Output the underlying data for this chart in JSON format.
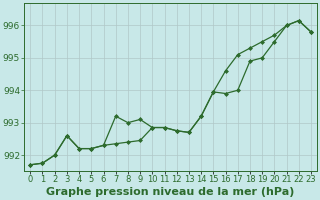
{
  "title": "Graphe pression niveau de la mer (hPa)",
  "bg_color": "#c8e8e8",
  "plot_bg_color": "#c8e8e8",
  "grid_color": "#b0c8c8",
  "line_color": "#2d6b2d",
  "x_labels": [
    "0",
    "1",
    "2",
    "3",
    "4",
    "5",
    "6",
    "7",
    "8",
    "9",
    "10",
    "11",
    "12",
    "13",
    "14",
    "15",
    "16",
    "17",
    "18",
    "19",
    "20",
    "21",
    "22",
    "23"
  ],
  "ylim": [
    991.5,
    996.7
  ],
  "yticks": [
    992,
    993,
    994,
    995,
    996
  ],
  "series1": [
    991.7,
    991.75,
    992.0,
    992.6,
    992.2,
    992.2,
    992.3,
    993.2,
    993.0,
    993.1,
    992.85,
    992.85,
    992.75,
    992.7,
    993.2,
    993.95,
    993.9,
    994.0,
    994.9,
    995.0,
    995.5,
    996.0,
    996.15,
    995.8
  ],
  "series2": [
    991.7,
    991.75,
    992.0,
    992.6,
    992.2,
    992.2,
    992.3,
    992.35,
    992.4,
    992.45,
    992.85,
    992.85,
    992.75,
    992.7,
    993.2,
    993.95,
    994.6,
    995.1,
    995.3,
    995.5,
    995.7,
    996.0,
    996.15,
    995.8
  ],
  "title_fontsize": 8,
  "tick_fontsize": 6.5
}
